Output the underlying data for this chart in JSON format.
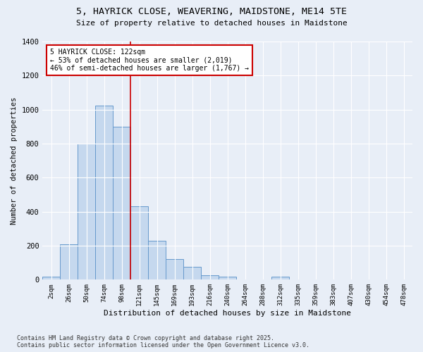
{
  "title": "5, HAYRICK CLOSE, WEAVERING, MAIDSTONE, ME14 5TE",
  "subtitle": "Size of property relative to detached houses in Maidstone",
  "xlabel": "Distribution of detached houses by size in Maidstone",
  "ylabel": "Number of detached properties",
  "bar_color": "#c5d8ee",
  "bar_edge_color": "#6699cc",
  "background_color": "#e8eef7",
  "annotation_text": "5 HAYRICK CLOSE: 122sqm\n← 53% of detached houses are smaller (2,019)\n46% of semi-detached houses are larger (1,767) →",
  "vline_color": "#cc0000",
  "footnote": "Contains HM Land Registry data © Crown copyright and database right 2025.\nContains public sector information licensed under the Open Government Licence v3.0.",
  "categories": [
    "2sqm",
    "26sqm",
    "50sqm",
    "74sqm",
    "98sqm",
    "121sqm",
    "145sqm",
    "169sqm",
    "193sqm",
    "216sqm",
    "240sqm",
    "264sqm",
    "288sqm",
    "312sqm",
    "335sqm",
    "359sqm",
    "383sqm",
    "407sqm",
    "430sqm",
    "454sqm",
    "478sqm"
  ],
  "values": [
    20,
    210,
    800,
    1025,
    900,
    430,
    230,
    120,
    75,
    25,
    20,
    0,
    0,
    20,
    0,
    0,
    0,
    0,
    0,
    0,
    0
  ],
  "ylim": [
    0,
    1400
  ],
  "yticks": [
    0,
    200,
    400,
    600,
    800,
    1000,
    1200,
    1400
  ]
}
